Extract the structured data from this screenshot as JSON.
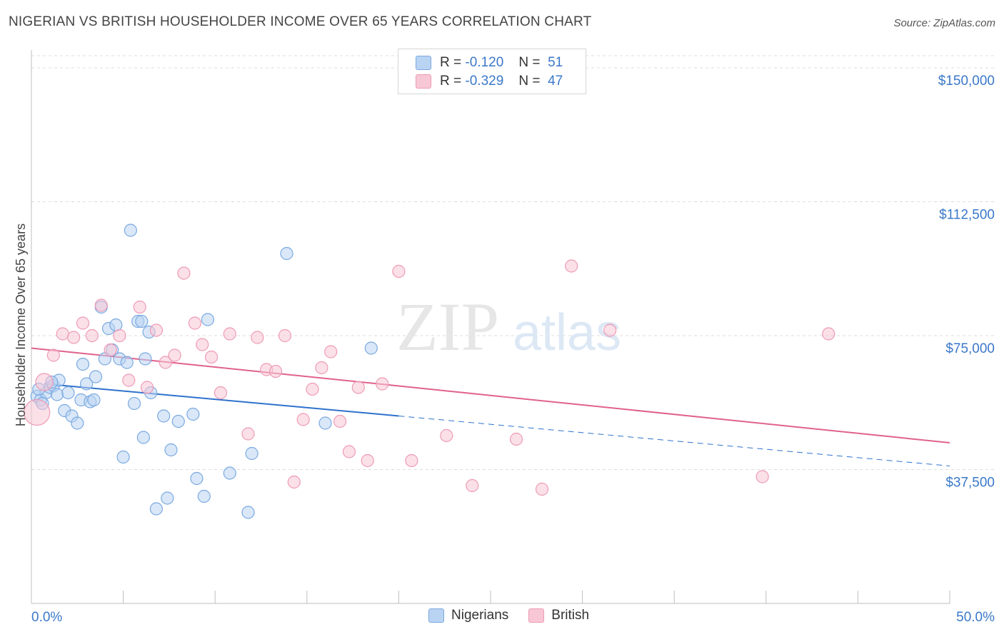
{
  "title": "NIGERIAN VS BRITISH HOUSEHOLDER INCOME OVER 65 YEARS CORRELATION CHART",
  "source": "Source: ZipAtlas.com",
  "watermark": {
    "zip": "ZIP",
    "atlas": "atlas"
  },
  "legend": {
    "rows": [
      {
        "r_label": "R =",
        "r_value": "-0.120",
        "n_label": "N =",
        "n_value": "51"
      },
      {
        "r_label": "R =",
        "r_value": "-0.329",
        "n_label": "N =",
        "n_value": "47"
      }
    ]
  },
  "colors": {
    "nigerians_fill": "#b9d3f2",
    "nigerians_stroke": "#7aa9e0",
    "nigerians_line": "#2e72cc",
    "british_fill": "#f8c7d6",
    "british_stroke": "#ee9ab5",
    "british_line": "#e0628c",
    "tick_text": "#3a78c9"
  },
  "chart_data": {
    "type": "scatter",
    "title": "NIGERIAN VS BRITISH HOUSEHOLDER INCOME OVER 65 YEARS CORRELATION CHART",
    "xlabel": "",
    "ylabel": "Householder Income Over 65 years",
    "xlim": [
      0,
      50
    ],
    "ylim": [
      0,
      155000
    ],
    "x_tick_labels": [
      "0.0%",
      "50.0%"
    ],
    "y_ticks": [
      37500,
      75000,
      112500,
      150000
    ],
    "y_tick_labels": [
      "$37,500",
      "$75,000",
      "$112,500",
      "$150,000"
    ],
    "grid": "horizontal dashed",
    "legend_position": "top-center",
    "series": [
      {
        "name": "Nigerians",
        "r": -0.12,
        "n": 51,
        "trend": {
          "x0": 0.7,
          "y0": 61500,
          "x1_solid": 20,
          "y1_solid": 52500,
          "x1": 50,
          "y1": 38500
        },
        "points": [
          [
            0.3,
            58000
          ],
          [
            0.5,
            57000
          ],
          [
            0.8,
            59000
          ],
          [
            1.0,
            60500
          ],
          [
            1.2,
            61000
          ],
          [
            1.4,
            58500
          ],
          [
            1.5,
            62500
          ],
          [
            1.8,
            54000
          ],
          [
            2.0,
            59000
          ],
          [
            2.2,
            52500
          ],
          [
            2.5,
            50500
          ],
          [
            2.7,
            57000
          ],
          [
            2.8,
            67000
          ],
          [
            3.0,
            61500
          ],
          [
            3.2,
            56500
          ],
          [
            3.4,
            57000
          ],
          [
            3.5,
            63500
          ],
          [
            3.8,
            83000
          ],
          [
            4.0,
            68500
          ],
          [
            4.2,
            77000
          ],
          [
            4.4,
            71000
          ],
          [
            4.6,
            78000
          ],
          [
            4.8,
            68500
          ],
          [
            5.0,
            41000
          ],
          [
            5.2,
            67500
          ],
          [
            5.4,
            104500
          ],
          [
            5.6,
            56000
          ],
          [
            5.8,
            79000
          ],
          [
            6.0,
            79000
          ],
          [
            6.1,
            46500
          ],
          [
            6.2,
            68500
          ],
          [
            6.4,
            76000
          ],
          [
            6.5,
            59000
          ],
          [
            6.8,
            26500
          ],
          [
            7.2,
            52500
          ],
          [
            7.4,
            29500
          ],
          [
            7.6,
            43000
          ],
          [
            8.0,
            51000
          ],
          [
            8.8,
            53000
          ],
          [
            9.0,
            35000
          ],
          [
            9.4,
            30000
          ],
          [
            9.6,
            79500
          ],
          [
            10.8,
            36500
          ],
          [
            11.8,
            25500
          ],
          [
            12.0,
            42000
          ],
          [
            13.9,
            98000
          ],
          [
            16.0,
            50500
          ],
          [
            18.5,
            71500
          ],
          [
            0.4,
            60000
          ],
          [
            0.6,
            56000
          ],
          [
            1.1,
            62000
          ]
        ]
      },
      {
        "name": "British",
        "r": -0.329,
        "n": 47,
        "trend": {
          "x0": 0,
          "y0": 71500,
          "x1": 50,
          "y1": 45000
        },
        "points": [
          [
            0.3,
            53500
          ],
          [
            0.7,
            62000
          ],
          [
            1.2,
            69500
          ],
          [
            1.7,
            75500
          ],
          [
            2.3,
            74500
          ],
          [
            2.8,
            78500
          ],
          [
            3.3,
            75000
          ],
          [
            3.8,
            83500
          ],
          [
            4.3,
            71000
          ],
          [
            4.8,
            75000
          ],
          [
            5.3,
            62500
          ],
          [
            5.9,
            83000
          ],
          [
            6.3,
            60500
          ],
          [
            6.8,
            76500
          ],
          [
            7.3,
            67500
          ],
          [
            7.8,
            69500
          ],
          [
            8.3,
            92500
          ],
          [
            8.9,
            78500
          ],
          [
            9.3,
            72500
          ],
          [
            9.8,
            69000
          ],
          [
            10.3,
            59000
          ],
          [
            10.8,
            75500
          ],
          [
            11.8,
            47500
          ],
          [
            12.3,
            74500
          ],
          [
            12.8,
            65500
          ],
          [
            13.3,
            65000
          ],
          [
            13.8,
            75000
          ],
          [
            14.3,
            34000
          ],
          [
            14.8,
            51500
          ],
          [
            15.3,
            60000
          ],
          [
            15.8,
            66000
          ],
          [
            16.3,
            70500
          ],
          [
            16.8,
            51000
          ],
          [
            17.3,
            42500
          ],
          [
            17.8,
            60500
          ],
          [
            18.3,
            40000
          ],
          [
            19.1,
            61500
          ],
          [
            20.0,
            93000
          ],
          [
            20.7,
            40000
          ],
          [
            22.6,
            47000
          ],
          [
            24.0,
            33000
          ],
          [
            26.4,
            46000
          ],
          [
            27.8,
            32000
          ],
          [
            29.4,
            94500
          ],
          [
            31.5,
            76500
          ],
          [
            39.8,
            35500
          ],
          [
            43.4,
            75500
          ]
        ]
      }
    ]
  },
  "bottom_legend": [
    "Nigerians",
    "British"
  ]
}
